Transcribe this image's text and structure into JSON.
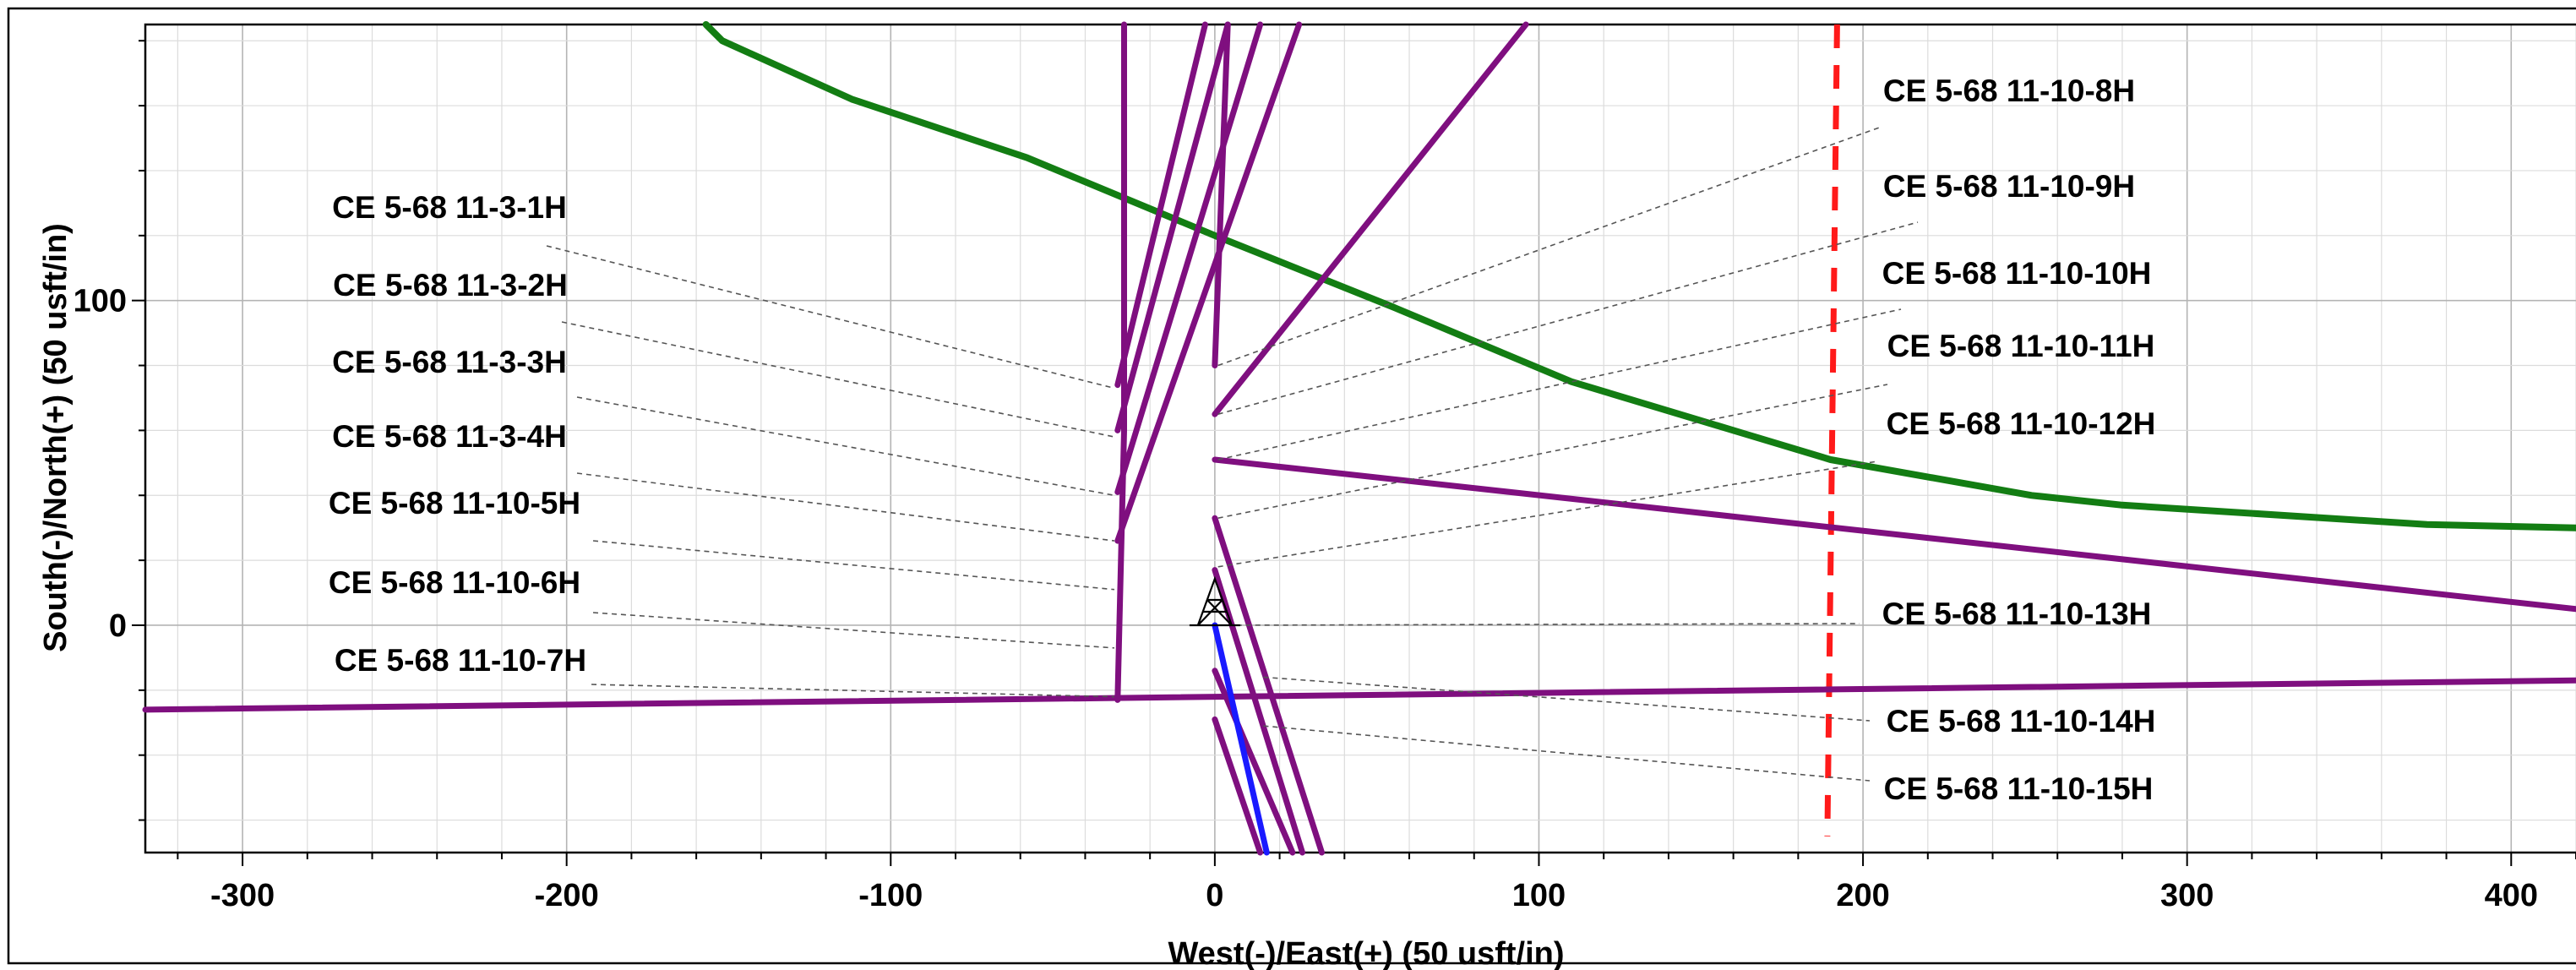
{
  "chart_data": {
    "type": "line",
    "title": "",
    "xlabel": "West(-)/East(+) (50 usft/in)",
    "ylabel": "South(-)/North(+) (50 usft/in)",
    "xlim": [
      -330,
      420
    ],
    "ylim": [
      -70,
      185
    ],
    "x_ticks": [
      -300,
      -200,
      -100,
      0,
      100,
      200,
      300,
      400
    ],
    "y_ticks": [
      0,
      100
    ],
    "x_tick_labels": [
      "-300",
      "-200",
      "-100",
      "0",
      "100",
      "200",
      "300",
      "400"
    ],
    "y_tick_labels": [
      "0",
      "100"
    ],
    "grid": true,
    "legend": "none",
    "colors": {
      "wells": "#7f0f7f",
      "offset": "#137d13",
      "lease_line": "#ff1a1a",
      "reference_well": "#1a1aff",
      "leader": "#555555"
    },
    "series": [
      {
        "role": "lease-line",
        "color": "#ff1a1a",
        "dashed": true,
        "x": [
          192,
          189
        ],
        "y": [
          185,
          -65
        ]
      },
      {
        "role": "offset-well",
        "color": "#137d13",
        "x": [
          -157,
          -152,
          -112,
          -58,
          0,
          55,
          110,
          190,
          252,
          280,
          374,
          420
        ],
        "y": [
          185,
          180,
          162,
          144,
          120,
          98,
          75,
          51,
          40,
          37,
          31,
          30
        ]
      },
      {
        "role": "well",
        "color": "#7f0f7f",
        "x": [
          -330,
          420
        ],
        "y": [
          -26,
          -17
        ]
      },
      {
        "role": "well",
        "color": "#7f0f7f",
        "x": [
          -30,
          -28,
          -28
        ],
        "y": [
          -23,
          60,
          185
        ]
      },
      {
        "role": "well",
        "color": "#7f0f7f",
        "x": [
          -30,
          -3
        ],
        "y": [
          74,
          185
        ]
      },
      {
        "role": "well",
        "color": "#7f0f7f",
        "x": [
          -30,
          4
        ],
        "y": [
          60,
          185
        ]
      },
      {
        "role": "well",
        "color": "#7f0f7f",
        "x": [
          -30,
          14
        ],
        "y": [
          41,
          185
        ]
      },
      {
        "role": "well",
        "color": "#7f0f7f",
        "x": [
          -30,
          26
        ],
        "y": [
          26,
          185
        ]
      },
      {
        "role": "well",
        "color": "#7f0f7f",
        "x": [
          0,
          4
        ],
        "y": [
          80,
          185
        ]
      },
      {
        "role": "well",
        "color": "#7f0f7f",
        "x": [
          0,
          96
        ],
        "y": [
          65,
          185
        ]
      },
      {
        "role": "well",
        "color": "#7f0f7f",
        "x": [
          0,
          420
        ],
        "y": [
          51,
          5
        ]
      },
      {
        "role": "well",
        "color": "#7f0f7f",
        "x": [
          0,
          33
        ],
        "y": [
          33,
          -70
        ]
      },
      {
        "role": "well",
        "color": "#7f0f7f",
        "x": [
          0,
          27
        ],
        "y": [
          17,
          -70
        ]
      },
      {
        "role": "well",
        "color": "#7f0f7f",
        "x": [
          0,
          24
        ],
        "y": [
          -14,
          -70
        ]
      },
      {
        "role": "well",
        "color": "#7f0f7f",
        "x": [
          0,
          14
        ],
        "y": [
          -29,
          -70
        ]
      },
      {
        "role": "reference-well",
        "color": "#1a1aff",
        "x": [
          0,
          16
        ],
        "y": [
          0,
          -70
        ]
      }
    ],
    "annotations": [
      {
        "text": "CE 5-68 11-3-1H",
        "side": "left",
        "x": -31,
        "y": 73
      },
      {
        "text": "CE 5-68 11-3-2H",
        "side": "left",
        "x": -31,
        "y": 58
      },
      {
        "text": "CE 5-68 11-3-3H",
        "side": "left",
        "x": -31,
        "y": 40
      },
      {
        "text": "CE 5-68 11-3-4H",
        "side": "left",
        "x": -31,
        "y": 26
      },
      {
        "text": "CE 5-68 11-10-5H",
        "side": "left",
        "x": -31,
        "y": 11
      },
      {
        "text": "CE 5-68 11-10-6H",
        "side": "left",
        "x": -31,
        "y": -7
      },
      {
        "text": "CE 5-68 11-10-7H",
        "side": "left",
        "x": -31,
        "y": -22
      },
      {
        "text": "CE 5-68 11-10-8H",
        "side": "right",
        "x": 1,
        "y": 80
      },
      {
        "text": "CE 5-68 11-10-9H",
        "side": "right",
        "x": 1,
        "y": 65
      },
      {
        "text": "CE 5-68 11-10-10H",
        "side": "right",
        "x": 1,
        "y": 51
      },
      {
        "text": "CE 5-68 11-10-11H",
        "side": "right",
        "x": 1,
        "y": 33
      },
      {
        "text": "CE 5-68 11-10-12H",
        "side": "right",
        "x": 1,
        "y": 18
      },
      {
        "text": "CE 5-68 11-10-13H",
        "side": "right",
        "x": 1,
        "y": 0
      },
      {
        "text": "CE 5-68 11-10-14H",
        "side": "right",
        "x": 15,
        "y": -16
      },
      {
        "text": "CE 5-68 11-10-15H",
        "side": "right",
        "x": 15,
        "y": -31
      }
    ]
  }
}
